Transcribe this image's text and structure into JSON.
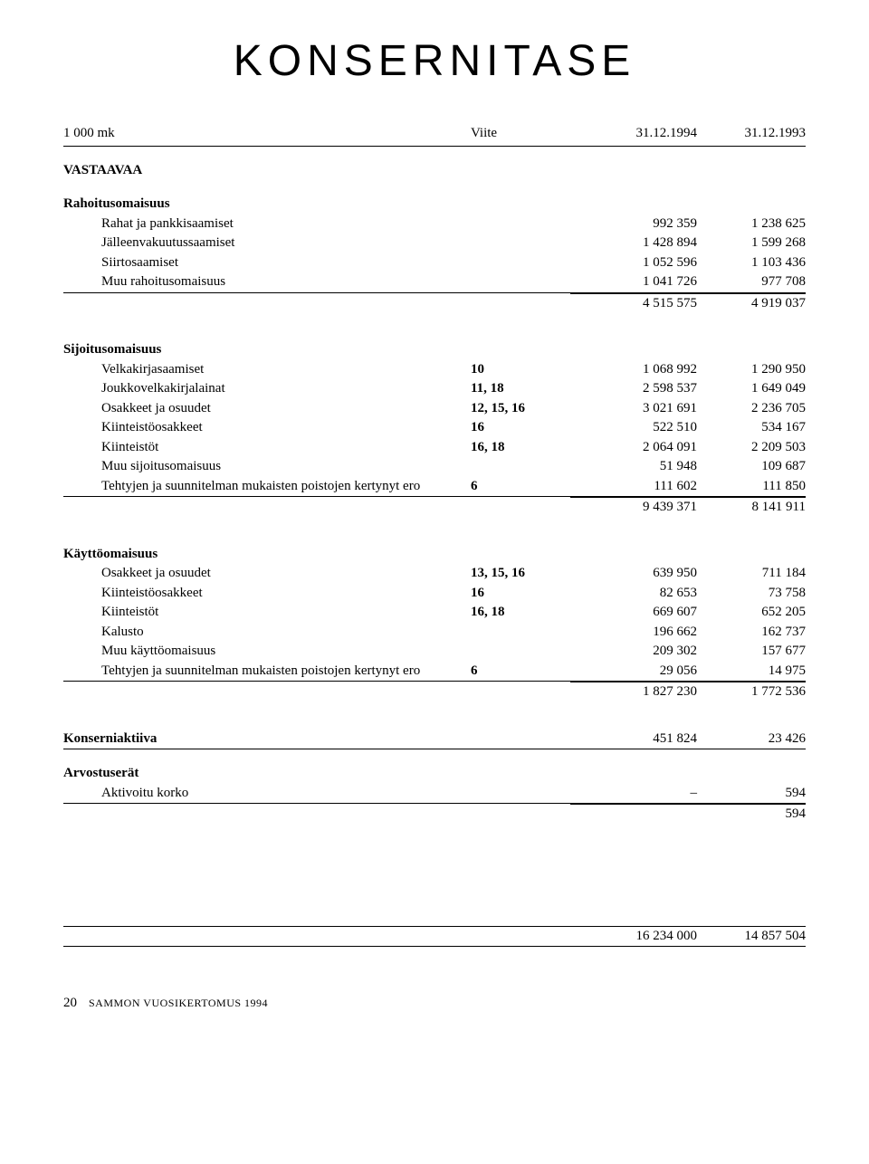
{
  "title": "KONSERNITASE",
  "header": {
    "col0": "1 000 mk",
    "note": "Viite",
    "col1": "31.12.1994",
    "col2": "31.12.1993"
  },
  "vastaavaa": {
    "label": "VASTAAVAA"
  },
  "rahoitus": {
    "label": "Rahoitusomaisuus",
    "rows": [
      {
        "label": "Rahat ja pankkisaamiset",
        "note": "",
        "c1": "992 359",
        "c2": "1 238 625"
      },
      {
        "label": "Jälleenvakuutussaamiset",
        "note": "",
        "c1": "1 428 894",
        "c2": "1 599 268"
      },
      {
        "label": "Siirtosaamiset",
        "note": "",
        "c1": "1 052 596",
        "c2": "1 103 436"
      },
      {
        "label": "Muu rahoitusomaisuus",
        "note": "",
        "c1": "1 041 726",
        "c2": "977 708"
      }
    ],
    "total": {
      "c1": "4 515 575",
      "c2": "4 919 037"
    }
  },
  "sijoitus": {
    "label": "Sijoitusomaisuus",
    "rows": [
      {
        "label": "Velkakirjasaamiset",
        "note": "10",
        "c1": "1 068 992",
        "c2": "1 290 950"
      },
      {
        "label": "Joukkovelkakirjalainat",
        "note": "11, 18",
        "c1": "2 598 537",
        "c2": "1 649 049"
      },
      {
        "label": "Osakkeet ja osuudet",
        "note": "12, 15, 16",
        "c1": "3 021 691",
        "c2": "2 236 705"
      },
      {
        "label": "Kiinteistöosakkeet",
        "note": "16",
        "c1": "522 510",
        "c2": "534 167"
      },
      {
        "label": "Kiinteistöt",
        "note": "16, 18",
        "c1": "2 064 091",
        "c2": "2 209 503"
      },
      {
        "label": "Muu sijoitusomaisuus",
        "note": "",
        "c1": "51 948",
        "c2": "109 687"
      },
      {
        "label": "Tehtyjen ja suunnitelman mukaisten poistojen kertynyt ero",
        "note": "6",
        "c1": "111 602",
        "c2": "111 850"
      }
    ],
    "total": {
      "c1": "9 439 371",
      "c2": "8 141 911"
    }
  },
  "kaytto": {
    "label": "Käyttöomaisuus",
    "rows": [
      {
        "label": "Osakkeet ja osuudet",
        "note": "13, 15, 16",
        "c1": "639 950",
        "c2": "711 184"
      },
      {
        "label": "Kiinteistöosakkeet",
        "note": "16",
        "c1": "82 653",
        "c2": "73 758"
      },
      {
        "label": "Kiinteistöt",
        "note": "16, 18",
        "c1": "669 607",
        "c2": "652 205"
      },
      {
        "label": "Kalusto",
        "note": "",
        "c1": "196 662",
        "c2": "162 737"
      },
      {
        "label": "Muu käyttöomaisuus",
        "note": "",
        "c1": "209 302",
        "c2": "157 677"
      },
      {
        "label": "Tehtyjen ja suunnitelman mukaisten poistojen kertynyt ero",
        "note": "6",
        "c1": "29 056",
        "c2": "14 975"
      }
    ],
    "total": {
      "c1": "1 827 230",
      "c2": "1 772 536"
    }
  },
  "konserniaktiiva": {
    "label": "Konserniaktiiva",
    "c1": "451 824",
    "c2": "23 426"
  },
  "arvostus": {
    "label": "Arvostuserät",
    "rows": [
      {
        "label": "Aktivoitu korko",
        "note": "",
        "c1": "–",
        "c2": "594"
      }
    ],
    "total": {
      "c1": "",
      "c2": "594"
    }
  },
  "grand": {
    "c1": "16 234 000",
    "c2": "14 857 504"
  },
  "footer": {
    "page": "20",
    "text": "SAMMON VUOSIKERTOMUS 1994"
  }
}
